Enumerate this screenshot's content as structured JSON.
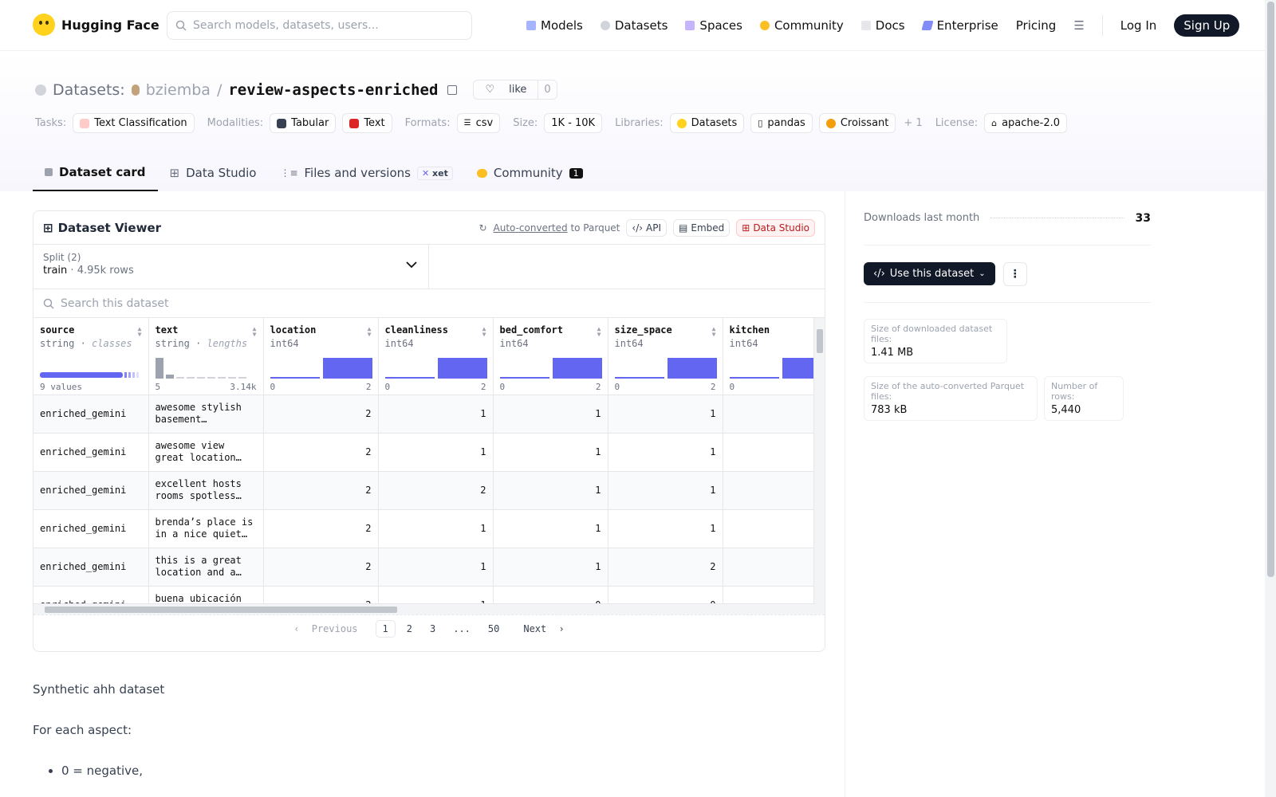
{
  "nav": {
    "brand": "Hugging Face",
    "search_placeholder": "Search models, datasets, users...",
    "links": [
      "Models",
      "Datasets",
      "Spaces",
      "Community",
      "Docs",
      "Enterprise",
      "Pricing"
    ],
    "login": "Log In",
    "signup": "Sign Up"
  },
  "header": {
    "section": "Datasets:",
    "owner": "bziemba",
    "slash": "/",
    "repo": "review-aspects-enriched",
    "like_label": "like",
    "like_count": "0",
    "tasks_label": "Tasks:",
    "task": "Text Classification",
    "modalities_label": "Modalities:",
    "modalities": [
      "Tabular",
      "Text"
    ],
    "formats_label": "Formats:",
    "format": "csv",
    "size_label": "Size:",
    "size": "1K - 10K",
    "libraries_label": "Libraries:",
    "libraries": [
      "Datasets",
      "pandas",
      "Croissant"
    ],
    "more_libs": "+ 1",
    "license_label": "License:",
    "license": "apache-2.0"
  },
  "tabs": {
    "card": "Dataset card",
    "studio": "Data Studio",
    "files": "Files and versions",
    "xet": "xet",
    "community": "Community",
    "community_count": "1"
  },
  "viewer": {
    "title": "Dataset Viewer",
    "autoconv": "Auto-converted",
    "to_parquet": "to Parquet",
    "api": "API",
    "embed": "Embed",
    "studio": "Data Studio",
    "split_label": "Split (2)",
    "split_name": "train",
    "split_rows": "4.95k rows",
    "search_placeholder": "Search this dataset",
    "columns": [
      {
        "name": "source",
        "type": "string",
        "sub": "classes",
        "min": "",
        "max": "",
        "foot": "9 values"
      },
      {
        "name": "text",
        "type": "string",
        "sub": "lengths",
        "min": "5",
        "max": "3.14k"
      },
      {
        "name": "location",
        "type": "int64",
        "min": "0",
        "max": "2"
      },
      {
        "name": "cleanliness",
        "type": "int64",
        "min": "0",
        "max": "2"
      },
      {
        "name": "bed_comfort",
        "type": "int64",
        "min": "0",
        "max": "2"
      },
      {
        "name": "size_space",
        "type": "int64",
        "min": "0",
        "max": "2"
      },
      {
        "name": "kitchen",
        "type": "int64",
        "min": "0",
        "max": ""
      }
    ],
    "rows": [
      {
        "source": "enriched_gemini",
        "text": "awesome stylish basement apartment with everything you need",
        "location": "2",
        "cleanliness": "1",
        "bed_comfort": "1",
        "size_space": "1"
      },
      {
        "source": "enriched_gemini",
        "text": "awesome view great location close to everything",
        "location": "2",
        "cleanliness": "1",
        "bed_comfort": "1",
        "size_space": "1"
      },
      {
        "source": "enriched_gemini",
        "text": "excellent hosts rooms spotless and very clean",
        "location": "2",
        "cleanliness": "2",
        "bed_comfort": "1",
        "size_space": "1"
      },
      {
        "source": "enriched_gemini",
        "text": "brenda’s place is in a nice quiet neighbourhood",
        "location": "2",
        "cleanliness": "1",
        "bed_comfort": "1",
        "size_space": "1"
      },
      {
        "source": "enriched_gemini",
        "text": "this is a great location and a lovely stay",
        "location": "2",
        "cleanliness": "1",
        "bed_comfort": "1",
        "size_space": "2"
      },
      {
        "source": "enriched_gemini",
        "text": "buena ubicación",
        "location": "2",
        "cleanliness": "1",
        "bed_comfort": "0",
        "size_space": "0"
      }
    ],
    "pager": {
      "prev": "Previous",
      "pages": [
        "1",
        "2",
        "3",
        "...",
        "50"
      ],
      "next": "Next"
    }
  },
  "card": {
    "p1": "Synthetic ahh dataset",
    "p2": "For each aspect:",
    "li1": "0 = negative,"
  },
  "sidebar": {
    "downloads_label": "Downloads last month",
    "downloads_value": "33",
    "use_button": "Use this dataset",
    "stats": [
      {
        "label": "Size of downloaded dataset files:",
        "value": "1.41 MB"
      },
      {
        "label": "Size of the auto-converted Parquet files:",
        "value": "783 kB"
      },
      {
        "label": "Number of rows:",
        "value": "5,440"
      }
    ]
  },
  "colors": {
    "accent": "#6366f1",
    "dark": "#111827",
    "red": "#ef4444",
    "yellow": "#ffd21e"
  }
}
